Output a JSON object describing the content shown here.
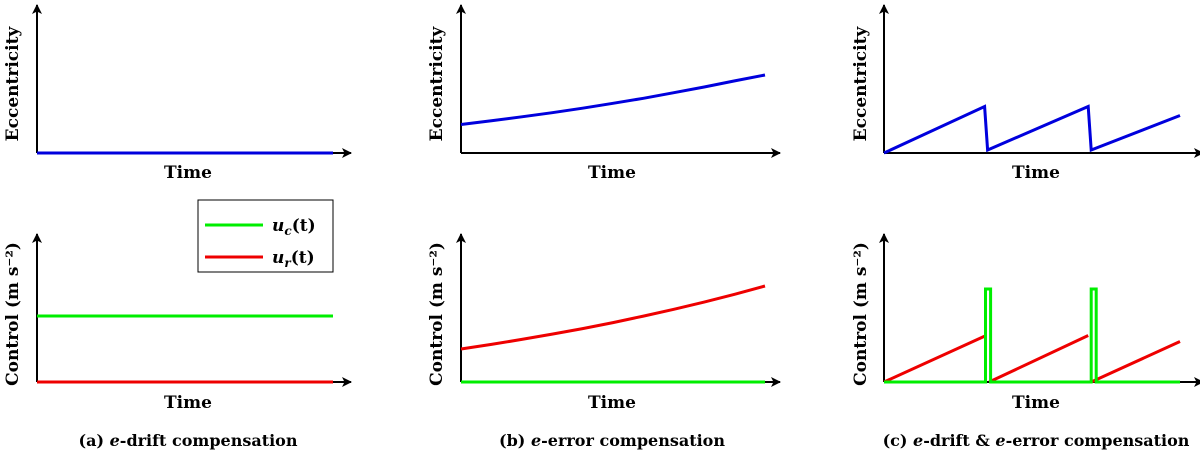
{
  "panels": [
    {
      "caption_prefix": "(a) ",
      "caption_e1": "e",
      "caption_rest": "-drift compensation",
      "top": {
        "xlabel": "Time",
        "ylabel": "Eccentricity"
      },
      "bottom": {
        "xlabel": "Time",
        "ylabel": "Control (m s⁻²)"
      }
    },
    {
      "caption_prefix": "(b) ",
      "caption_e1": "e",
      "caption_rest": "-error compensation",
      "top": {
        "xlabel": "Time",
        "ylabel": "Eccentricity"
      },
      "bottom": {
        "xlabel": "Time",
        "ylabel": "Control (m s⁻²)"
      }
    },
    {
      "caption_prefix": "(c) ",
      "caption_e1": "e",
      "caption_mid": "-drift & ",
      "caption_e2": "e",
      "caption_rest": "-error compensation",
      "top": {
        "xlabel": "Time",
        "ylabel": "Eccentricity"
      },
      "bottom": {
        "xlabel": "Time",
        "ylabel": "Control (m s⁻²)"
      }
    }
  ],
  "legend": [
    {
      "base": "u",
      "sub": "c",
      "arg": "(t)",
      "color": "#00ee00"
    },
    {
      "base": "u",
      "sub": "r",
      "arg": "(t)",
      "color": "#ee0000"
    }
  ],
  "colors": {
    "eccentricity": "#0000dd",
    "u_c": "#00ee00",
    "u_r": "#ee0000",
    "axis": "#000000"
  },
  "chart_data": [
    {
      "type": "line",
      "panel": "a-top",
      "xlabel": "Time",
      "ylabel": "Eccentricity",
      "ylim": [
        0,
        1
      ],
      "series": [
        {
          "color": "#0000dd",
          "x": [
            0,
            1
          ],
          "y": [
            0,
            0
          ]
        }
      ]
    },
    {
      "type": "line",
      "panel": "a-bottom",
      "xlabel": "Time",
      "ylabel": "Control (m s⁻²)",
      "ylim": [
        0,
        1
      ],
      "series": [
        {
          "name": "u_c(t)",
          "color": "#00ee00",
          "x": [
            0,
            1
          ],
          "y": [
            0.44,
            0.44
          ]
        },
        {
          "name": "u_r(t)",
          "color": "#ee0000",
          "x": [
            0,
            1
          ],
          "y": [
            0,
            0
          ]
        }
      ]
    },
    {
      "type": "line",
      "panel": "b-top",
      "xlabel": "Time",
      "ylabel": "Eccentricity",
      "ylim": [
        0,
        1
      ],
      "series": [
        {
          "color": "#0000dd",
          "x": [
            0,
            0.1,
            0.2,
            0.3,
            0.4,
            0.5,
            0.6,
            0.7,
            0.8,
            0.9,
            1
          ],
          "y": [
            0.19,
            0.215,
            0.241,
            0.269,
            0.299,
            0.331,
            0.365,
            0.402,
            0.44,
            0.481,
            0.52
          ]
        }
      ]
    },
    {
      "type": "line",
      "panel": "b-bottom",
      "xlabel": "Time",
      "ylabel": "Control (m s⁻²)",
      "ylim": [
        0,
        1
      ],
      "series": [
        {
          "color": "#ee0000",
          "x": [
            0,
            0.1,
            0.2,
            0.3,
            0.4,
            0.5,
            0.6,
            0.7,
            0.8,
            0.9,
            1
          ],
          "y": [
            0.22,
            0.251,
            0.284,
            0.319,
            0.356,
            0.396,
            0.439,
            0.485,
            0.533,
            0.585,
            0.64
          ]
        },
        {
          "color": "#00ee00",
          "x": [
            0,
            1
          ],
          "y": [
            0,
            0
          ]
        }
      ]
    },
    {
      "type": "line",
      "panel": "c-top",
      "xlabel": "Time",
      "ylabel": "Eccentricity",
      "ylim": [
        0,
        1
      ],
      "series": [
        {
          "color": "#0000dd",
          "x": [
            0,
            0.34,
            0.35,
            0.69,
            0.7,
            1
          ],
          "y": [
            0,
            0.31,
            0.02,
            0.31,
            0.02,
            0.25
          ]
        }
      ]
    },
    {
      "type": "line",
      "panel": "c-bottom",
      "xlabel": "Time",
      "ylabel": "Control (m s⁻²)",
      "ylim": [
        0,
        1
      ],
      "series": [
        {
          "color": "#ee0000",
          "x": [
            0,
            0.345,
            null,
            0.355,
            0.69,
            null,
            0.7,
            1
          ],
          "y": [
            0,
            0.31,
            null,
            0,
            0.31,
            null,
            0,
            0.27
          ]
        },
        {
          "color": "#00ee00",
          "x": [
            0,
            0.343,
            0.343,
            0.36,
            0.36,
            0.7,
            0.7,
            0.717,
            0.717,
            1
          ],
          "y": [
            0,
            0,
            0.62,
            0.62,
            0,
            0,
            0.62,
            0.62,
            0,
            0
          ]
        }
      ]
    }
  ]
}
